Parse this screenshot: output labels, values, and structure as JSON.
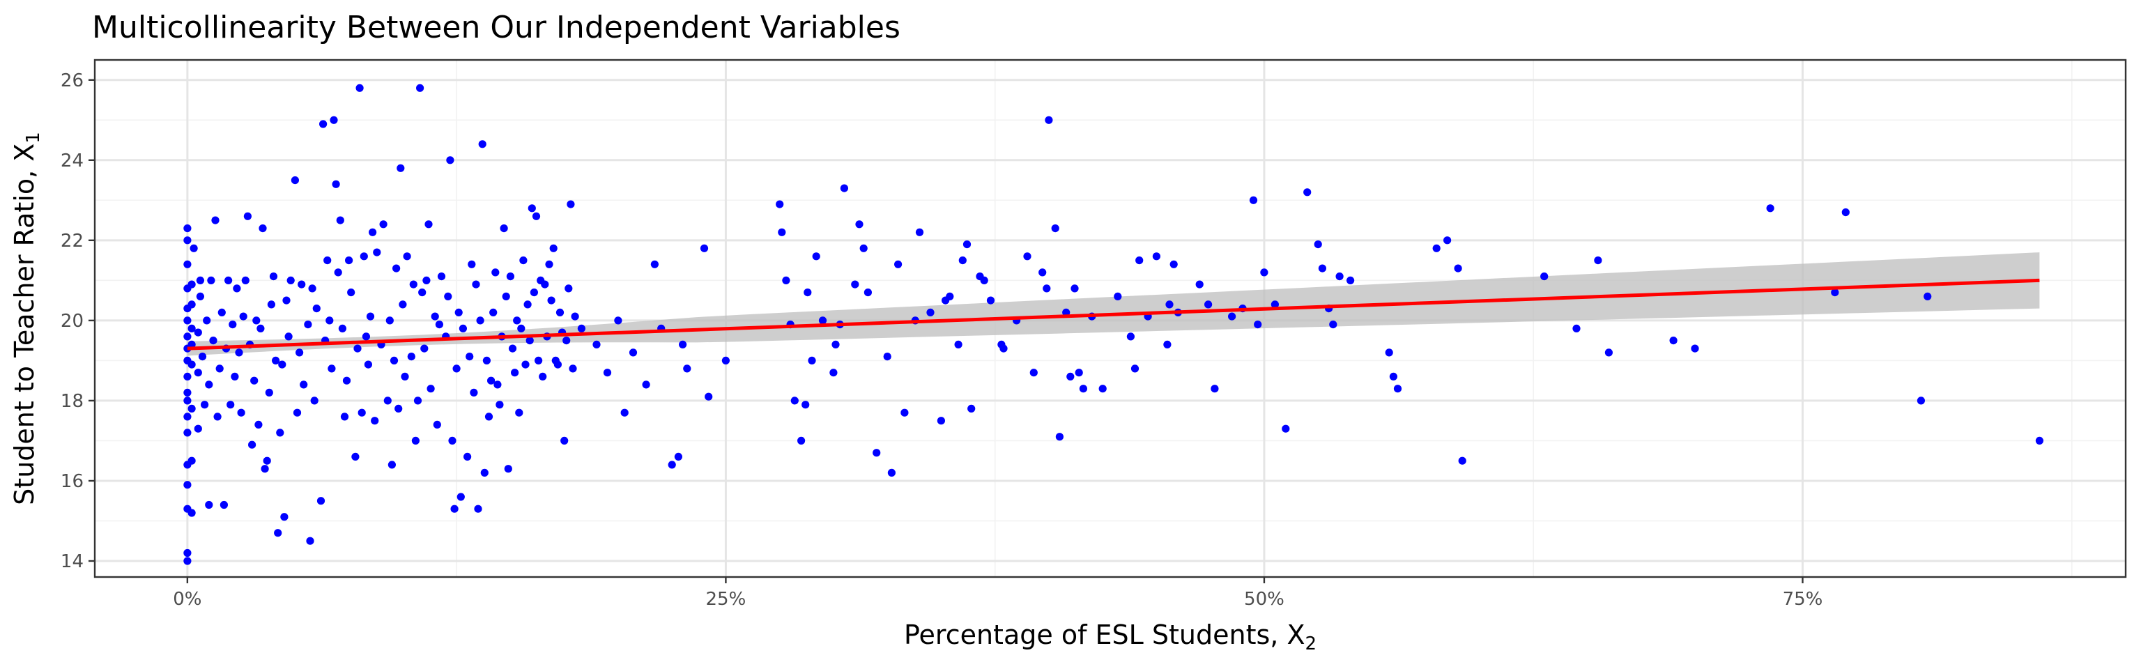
{
  "chart_data": {
    "type": "scatter",
    "title": "Multicollinearity Between Our Independent Variables",
    "xlabel": "Percentage of ESL Students, X",
    "xlabel_sub": "2",
    "ylabel": "Student to Teacher Ratio, X",
    "ylabel_sub": "1",
    "xlim": [
      -0.043,
      0.9
    ],
    "ylim": [
      13.6,
      26.5
    ],
    "x_ticks": [
      0,
      0.25,
      0.5,
      0.75
    ],
    "x_tick_labels": [
      "0%",
      "25%",
      "50%",
      "75%"
    ],
    "y_ticks": [
      14,
      16,
      18,
      20,
      22,
      24,
      26
    ],
    "y_tick_labels": [
      "14",
      "16",
      "18",
      "20",
      "22",
      "24",
      "26"
    ],
    "grid": true,
    "colors": {
      "points": "#0000ff",
      "fit_line": "#ff0000",
      "confidence_band": "#bdbdbd"
    },
    "fit": {
      "method": "linear",
      "x": [
        0.0,
        0.86
      ],
      "y": [
        19.3,
        21.0
      ],
      "ci_low_end": [
        19.12,
        20.3
      ],
      "ci_high_end": [
        19.48,
        21.7
      ]
    },
    "points": [
      [
        0.0,
        14.0
      ],
      [
        0.0,
        14.2
      ],
      [
        0.0,
        15.3
      ],
      [
        0.0,
        15.9
      ],
      [
        0.0,
        16.4
      ],
      [
        0.0,
        17.2
      ],
      [
        0.0,
        17.6
      ],
      [
        0.0,
        18.0
      ],
      [
        0.0,
        18.2
      ],
      [
        0.0,
        18.6
      ],
      [
        0.0,
        19.0
      ],
      [
        0.0,
        19.3
      ],
      [
        0.0,
        19.6
      ],
      [
        0.0,
        20.0
      ],
      [
        0.0,
        20.3
      ],
      [
        0.0,
        20.8
      ],
      [
        0.0,
        21.4
      ],
      [
        0.0,
        22.0
      ],
      [
        0.0,
        22.3
      ],
      [
        0.002,
        15.2
      ],
      [
        0.002,
        16.5
      ],
      [
        0.002,
        17.8
      ],
      [
        0.002,
        18.9
      ],
      [
        0.002,
        19.4
      ],
      [
        0.002,
        19.8
      ],
      [
        0.002,
        20.4
      ],
      [
        0.002,
        20.9
      ],
      [
        0.003,
        21.8
      ],
      [
        0.005,
        17.3
      ],
      [
        0.005,
        18.7
      ],
      [
        0.005,
        19.7
      ],
      [
        0.006,
        20.6
      ],
      [
        0.006,
        21.0
      ],
      [
        0.007,
        19.1
      ],
      [
        0.008,
        17.9
      ],
      [
        0.009,
        20.0
      ],
      [
        0.01,
        15.4
      ],
      [
        0.01,
        18.4
      ],
      [
        0.011,
        21.0
      ],
      [
        0.012,
        19.5
      ],
      [
        0.013,
        22.5
      ],
      [
        0.014,
        17.6
      ],
      [
        0.015,
        18.8
      ],
      [
        0.016,
        20.2
      ],
      [
        0.017,
        15.4
      ],
      [
        0.018,
        19.3
      ],
      [
        0.019,
        21.0
      ],
      [
        0.02,
        17.9
      ],
      [
        0.021,
        19.9
      ],
      [
        0.022,
        18.6
      ],
      [
        0.023,
        20.8
      ],
      [
        0.024,
        19.2
      ],
      [
        0.025,
        17.7
      ],
      [
        0.026,
        20.1
      ],
      [
        0.027,
        21.0
      ],
      [
        0.028,
        22.6
      ],
      [
        0.029,
        19.4
      ],
      [
        0.03,
        16.9
      ],
      [
        0.031,
        18.5
      ],
      [
        0.032,
        20.0
      ],
      [
        0.033,
        17.4
      ],
      [
        0.034,
        19.8
      ],
      [
        0.035,
        22.3
      ],
      [
        0.036,
        16.3
      ],
      [
        0.037,
        16.5
      ],
      [
        0.038,
        18.2
      ],
      [
        0.039,
        20.4
      ],
      [
        0.04,
        21.1
      ],
      [
        0.041,
        19.0
      ],
      [
        0.042,
        14.7
      ],
      [
        0.043,
        17.2
      ],
      [
        0.044,
        18.9
      ],
      [
        0.045,
        15.1
      ],
      [
        0.046,
        20.5
      ],
      [
        0.047,
        19.6
      ],
      [
        0.048,
        21.0
      ],
      [
        0.05,
        23.5
      ],
      [
        0.051,
        17.7
      ],
      [
        0.052,
        19.2
      ],
      [
        0.053,
        20.9
      ],
      [
        0.054,
        18.4
      ],
      [
        0.056,
        19.9
      ],
      [
        0.057,
        14.5
      ],
      [
        0.058,
        20.8
      ],
      [
        0.059,
        18.0
      ],
      [
        0.06,
        20.3
      ],
      [
        0.062,
        15.5
      ],
      [
        0.063,
        24.9
      ],
      [
        0.064,
        19.5
      ],
      [
        0.065,
        21.5
      ],
      [
        0.066,
        20.0
      ],
      [
        0.067,
        18.8
      ],
      [
        0.068,
        25.0
      ],
      [
        0.069,
        23.4
      ],
      [
        0.07,
        21.2
      ],
      [
        0.071,
        22.5
      ],
      [
        0.072,
        19.8
      ],
      [
        0.073,
        17.6
      ],
      [
        0.074,
        18.5
      ],
      [
        0.075,
        21.5
      ],
      [
        0.076,
        20.7
      ],
      [
        0.078,
        16.6
      ],
      [
        0.079,
        19.3
      ],
      [
        0.08,
        25.8
      ],
      [
        0.081,
        17.7
      ],
      [
        0.082,
        21.6
      ],
      [
        0.083,
        19.6
      ],
      [
        0.084,
        18.9
      ],
      [
        0.085,
        20.1
      ],
      [
        0.086,
        22.2
      ],
      [
        0.087,
        17.5
      ],
      [
        0.088,
        21.7
      ],
      [
        0.09,
        19.4
      ],
      [
        0.091,
        22.4
      ],
      [
        0.093,
        18.0
      ],
      [
        0.094,
        20.0
      ],
      [
        0.095,
        16.4
      ],
      [
        0.096,
        19.0
      ],
      [
        0.097,
        21.3
      ],
      [
        0.098,
        17.8
      ],
      [
        0.099,
        23.8
      ],
      [
        0.1,
        20.4
      ],
      [
        0.101,
        18.6
      ],
      [
        0.102,
        21.6
      ],
      [
        0.104,
        19.1
      ],
      [
        0.105,
        20.9
      ],
      [
        0.106,
        17.0
      ],
      [
        0.107,
        18.0
      ],
      [
        0.108,
        25.8
      ],
      [
        0.109,
        20.7
      ],
      [
        0.11,
        19.3
      ],
      [
        0.111,
        21.0
      ],
      [
        0.112,
        22.4
      ],
      [
        0.113,
        18.3
      ],
      [
        0.115,
        20.1
      ],
      [
        0.116,
        17.4
      ],
      [
        0.117,
        19.9
      ],
      [
        0.118,
        21.1
      ],
      [
        0.12,
        19.6
      ],
      [
        0.121,
        20.6
      ],
      [
        0.122,
        24.0
      ],
      [
        0.123,
        17.0
      ],
      [
        0.124,
        15.3
      ],
      [
        0.125,
        18.8
      ],
      [
        0.126,
        20.2
      ],
      [
        0.127,
        15.6
      ],
      [
        0.128,
        19.8
      ],
      [
        0.13,
        16.6
      ],
      [
        0.131,
        19.1
      ],
      [
        0.132,
        21.4
      ],
      [
        0.133,
        18.2
      ],
      [
        0.134,
        20.9
      ],
      [
        0.135,
        15.3
      ],
      [
        0.136,
        20.0
      ],
      [
        0.137,
        24.4
      ],
      [
        0.138,
        16.2
      ],
      [
        0.139,
        19.0
      ],
      [
        0.14,
        17.6
      ],
      [
        0.141,
        18.5
      ],
      [
        0.142,
        20.2
      ],
      [
        0.143,
        21.2
      ],
      [
        0.144,
        18.4
      ],
      [
        0.145,
        17.9
      ],
      [
        0.146,
        19.6
      ],
      [
        0.147,
        22.3
      ],
      [
        0.148,
        20.6
      ],
      [
        0.149,
        16.3
      ],
      [
        0.15,
        21.1
      ],
      [
        0.151,
        19.3
      ],
      [
        0.152,
        18.7
      ],
      [
        0.153,
        20.0
      ],
      [
        0.154,
        17.7
      ],
      [
        0.155,
        19.8
      ],
      [
        0.156,
        21.5
      ],
      [
        0.157,
        18.9
      ],
      [
        0.158,
        20.4
      ],
      [
        0.159,
        19.5
      ],
      [
        0.16,
        22.8
      ],
      [
        0.161,
        20.7
      ],
      [
        0.162,
        22.6
      ],
      [
        0.163,
        19.0
      ],
      [
        0.164,
        21.0
      ],
      [
        0.165,
        18.6
      ],
      [
        0.166,
        20.9
      ],
      [
        0.167,
        19.6
      ],
      [
        0.168,
        21.4
      ],
      [
        0.169,
        20.5
      ],
      [
        0.17,
        21.8
      ],
      [
        0.171,
        19.0
      ],
      [
        0.172,
        18.9
      ],
      [
        0.173,
        20.2
      ],
      [
        0.174,
        19.7
      ],
      [
        0.175,
        17.0
      ],
      [
        0.176,
        19.5
      ],
      [
        0.177,
        20.8
      ],
      [
        0.178,
        22.9
      ],
      [
        0.179,
        18.8
      ],
      [
        0.18,
        20.1
      ],
      [
        0.183,
        19.8
      ],
      [
        0.19,
        19.4
      ],
      [
        0.195,
        18.7
      ],
      [
        0.2,
        20.0
      ],
      [
        0.203,
        17.7
      ],
      [
        0.207,
        19.2
      ],
      [
        0.213,
        18.4
      ],
      [
        0.217,
        21.4
      ],
      [
        0.22,
        19.8
      ],
      [
        0.225,
        16.4
      ],
      [
        0.228,
        16.6
      ],
      [
        0.23,
        19.4
      ],
      [
        0.232,
        18.8
      ],
      [
        0.24,
        21.8
      ],
      [
        0.242,
        18.1
      ],
      [
        0.25,
        19.0
      ],
      [
        0.275,
        22.9
      ],
      [
        0.276,
        22.2
      ],
      [
        0.278,
        21.0
      ],
      [
        0.28,
        19.9
      ],
      [
        0.282,
        18.0
      ],
      [
        0.285,
        17.0
      ],
      [
        0.287,
        17.9
      ],
      [
        0.288,
        20.7
      ],
      [
        0.29,
        19.0
      ],
      [
        0.292,
        21.6
      ],
      [
        0.295,
        20.0
      ],
      [
        0.3,
        18.7
      ],
      [
        0.301,
        19.4
      ],
      [
        0.303,
        19.9
      ],
      [
        0.305,
        23.3
      ],
      [
        0.31,
        20.9
      ],
      [
        0.312,
        22.4
      ],
      [
        0.314,
        21.8
      ],
      [
        0.316,
        20.7
      ],
      [
        0.32,
        16.7
      ],
      [
        0.325,
        19.1
      ],
      [
        0.327,
        16.2
      ],
      [
        0.33,
        21.4
      ],
      [
        0.333,
        17.7
      ],
      [
        0.338,
        20.0
      ],
      [
        0.34,
        22.2
      ],
      [
        0.345,
        20.2
      ],
      [
        0.35,
        17.5
      ],
      [
        0.352,
        20.5
      ],
      [
        0.354,
        20.6
      ],
      [
        0.358,
        19.4
      ],
      [
        0.36,
        21.5
      ],
      [
        0.362,
        21.9
      ],
      [
        0.364,
        17.8
      ],
      [
        0.368,
        21.1
      ],
      [
        0.37,
        21.0
      ],
      [
        0.373,
        20.5
      ],
      [
        0.378,
        19.4
      ],
      [
        0.379,
        19.3
      ],
      [
        0.385,
        20.0
      ],
      [
        0.39,
        21.6
      ],
      [
        0.393,
        18.7
      ],
      [
        0.397,
        21.2
      ],
      [
        0.399,
        20.8
      ],
      [
        0.4,
        25.0
      ],
      [
        0.403,
        22.3
      ],
      [
        0.405,
        17.1
      ],
      [
        0.408,
        20.2
      ],
      [
        0.41,
        18.6
      ],
      [
        0.412,
        20.8
      ],
      [
        0.414,
        18.7
      ],
      [
        0.416,
        18.3
      ],
      [
        0.42,
        20.1
      ],
      [
        0.425,
        18.3
      ],
      [
        0.432,
        20.6
      ],
      [
        0.438,
        19.6
      ],
      [
        0.44,
        18.8
      ],
      [
        0.442,
        21.5
      ],
      [
        0.446,
        20.1
      ],
      [
        0.45,
        21.6
      ],
      [
        0.455,
        19.4
      ],
      [
        0.456,
        20.4
      ],
      [
        0.458,
        21.4
      ],
      [
        0.46,
        20.2
      ],
      [
        0.47,
        20.9
      ],
      [
        0.474,
        20.4
      ],
      [
        0.477,
        18.3
      ],
      [
        0.485,
        20.1
      ],
      [
        0.49,
        20.3
      ],
      [
        0.495,
        23.0
      ],
      [
        0.497,
        19.9
      ],
      [
        0.5,
        21.2
      ],
      [
        0.505,
        20.4
      ],
      [
        0.51,
        17.3
      ],
      [
        0.52,
        23.2
      ],
      [
        0.525,
        21.9
      ],
      [
        0.527,
        21.3
      ],
      [
        0.53,
        20.3
      ],
      [
        0.532,
        19.9
      ],
      [
        0.535,
        21.1
      ],
      [
        0.54,
        21.0
      ],
      [
        0.558,
        19.2
      ],
      [
        0.56,
        18.6
      ],
      [
        0.562,
        18.3
      ],
      [
        0.58,
        21.8
      ],
      [
        0.585,
        22.0
      ],
      [
        0.59,
        21.3
      ],
      [
        0.592,
        16.5
      ],
      [
        0.63,
        21.1
      ],
      [
        0.645,
        19.8
      ],
      [
        0.655,
        21.5
      ],
      [
        0.66,
        19.2
      ],
      [
        0.69,
        19.5
      ],
      [
        0.7,
        19.3
      ],
      [
        0.735,
        22.8
      ],
      [
        0.765,
        20.7
      ],
      [
        0.77,
        22.7
      ],
      [
        0.805,
        18.0
      ],
      [
        0.808,
        20.6
      ],
      [
        0.86,
        17.0
      ]
    ]
  }
}
